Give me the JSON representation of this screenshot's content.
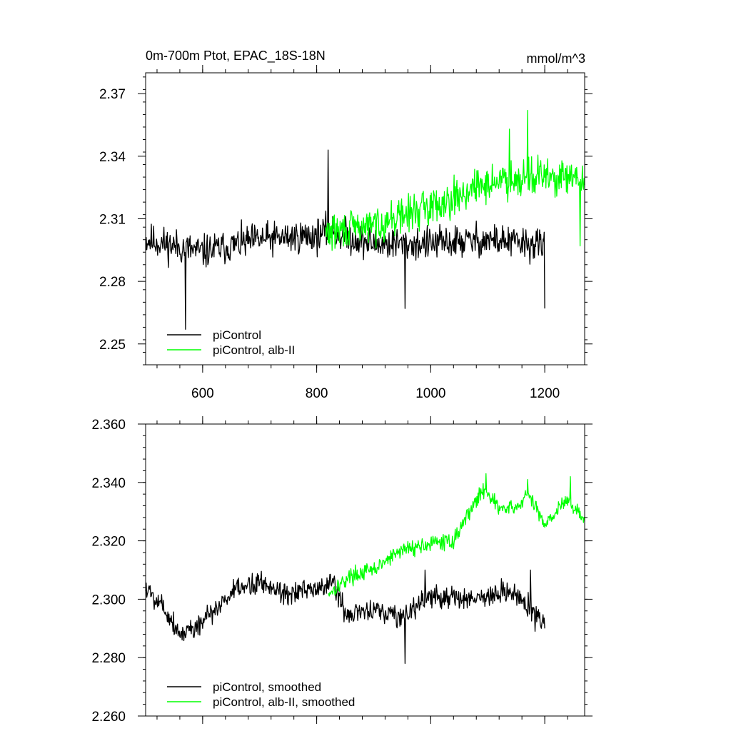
{
  "chart_data": [
    {
      "type": "line",
      "title": "0m-700m Ptot, EPAC_18S-18N",
      "units": "mmol/m^3",
      "xlim": [
        500,
        1270
      ],
      "ylim": [
        2.24,
        2.38
      ],
      "xticks": [
        {
          "value": 600,
          "label": "600"
        },
        {
          "value": 800,
          "label": "800"
        },
        {
          "value": 1000,
          "label": "1000"
        },
        {
          "value": 1200,
          "label": "1200"
        }
      ],
      "yticks": [
        {
          "value": 2.25,
          "label": "2.25"
        },
        {
          "value": 2.28,
          "label": "2.28"
        },
        {
          "value": 2.31,
          "label": "2.31"
        },
        {
          "value": 2.34,
          "label": "2.34"
        },
        {
          "value": 2.37,
          "label": "2.37"
        }
      ],
      "legend_position": "bottom-left",
      "series": [
        {
          "name": "piControl",
          "color": "#000000",
          "x_start": 500,
          "x_end": 1200,
          "base": [
            [
              500,
              2.3
            ],
            [
              600,
              2.294
            ],
            [
              700,
              2.3
            ],
            [
              800,
              2.302
            ],
            [
              820,
              2.304
            ],
            [
              900,
              2.298
            ],
            [
              1000,
              2.298
            ],
            [
              1100,
              2.3
            ],
            [
              1200,
              2.297
            ]
          ],
          "noise_amplitude": 0.012,
          "spikes": [
            [
              820,
              2.343
            ],
            [
              570,
              2.257
            ],
            [
              955,
              2.267
            ],
            [
              1200,
              2.267
            ]
          ],
          "seed": 11
        },
        {
          "name": "piControl, alb-II",
          "color": "#00ff00",
          "x_start": 815,
          "x_end": 1270,
          "base": [
            [
              815,
              2.303
            ],
            [
              900,
              2.307
            ],
            [
              1000,
              2.316
            ],
            [
              1100,
              2.327
            ],
            [
              1170,
              2.331
            ],
            [
              1270,
              2.328
            ]
          ],
          "noise_amplitude": 0.013,
          "spikes": [
            [
              1170,
              2.362
            ],
            [
              1138,
              2.353
            ],
            [
              1262,
              2.297
            ]
          ],
          "seed": 29
        }
      ]
    },
    {
      "type": "line",
      "title": "",
      "xlim": [
        500,
        1270
      ],
      "ylim": [
        2.26,
        2.36
      ],
      "xticks": [
        {
          "value": 600,
          "label": ""
        },
        {
          "value": 800,
          "label": ""
        },
        {
          "value": 1000,
          "label": ""
        },
        {
          "value": 1200,
          "label": ""
        }
      ],
      "yticks": [
        {
          "value": 2.26,
          "label": "2.260"
        },
        {
          "value": 2.28,
          "label": "2.280"
        },
        {
          "value": 2.3,
          "label": "2.300"
        },
        {
          "value": 2.32,
          "label": "2.320"
        },
        {
          "value": 2.34,
          "label": "2.340"
        },
        {
          "value": 2.36,
          "label": "2.360"
        }
      ],
      "legend_position": "bottom-left",
      "series": [
        {
          "name": "piControl, smoothed",
          "color": "#000000",
          "x_start": 500,
          "x_end": 1200,
          "base": [
            [
              500,
              2.304
            ],
            [
              530,
              2.298
            ],
            [
              560,
              2.288
            ],
            [
              600,
              2.292
            ],
            [
              650,
              2.302
            ],
            [
              700,
              2.306
            ],
            [
              750,
              2.302
            ],
            [
              800,
              2.303
            ],
            [
              830,
              2.306
            ],
            [
              850,
              2.295
            ],
            [
              900,
              2.296
            ],
            [
              950,
              2.294
            ],
            [
              1000,
              2.301
            ],
            [
              1050,
              2.3
            ],
            [
              1100,
              2.301
            ],
            [
              1150,
              2.302
            ],
            [
              1200,
              2.291
            ]
          ],
          "noise_amplitude": 0.006,
          "spikes": [
            [
              955,
              2.278
            ],
            [
              1175,
              2.31
            ],
            [
              990,
              2.31
            ]
          ],
          "seed": 5
        },
        {
          "name": "piControl, alb-II, smoothed",
          "color": "#00ff00",
          "x_start": 820,
          "x_end": 1270,
          "base": [
            [
              820,
              2.302
            ],
            [
              860,
              2.308
            ],
            [
              900,
              2.31
            ],
            [
              950,
              2.317
            ],
            [
              1000,
              2.319
            ],
            [
              1040,
              2.32
            ],
            [
              1070,
              2.331
            ],
            [
              1095,
              2.338
            ],
            [
              1120,
              2.331
            ],
            [
              1150,
              2.331
            ],
            [
              1170,
              2.336
            ],
            [
              1200,
              2.326
            ],
            [
              1240,
              2.334
            ],
            [
              1270,
              2.327
            ]
          ],
          "noise_amplitude": 0.004,
          "spikes": [
            [
              1097,
              2.343
            ],
            [
              1245,
              2.342
            ],
            [
              1170,
              2.341
            ]
          ],
          "seed": 17
        }
      ]
    }
  ]
}
